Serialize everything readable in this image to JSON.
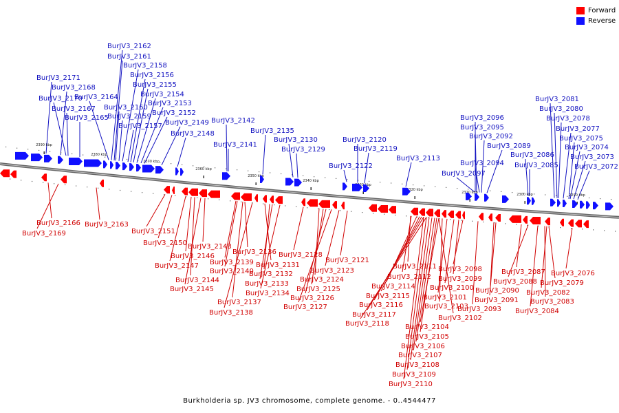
{
  "legend": {
    "forward_label": "Forward",
    "reverse_label": "Reverse",
    "forward_color": "#ff0000",
    "reverse_color": "#1010ff"
  },
  "caption": "Burkholderia sp. JV3 chromosome, complete genome. - 0..4544477",
  "kbp_ticks": [
    "2390 kbp",
    "2380 kbp",
    "2370 kbp",
    "2360 kbp",
    "2350 kbp",
    "2340 kbp",
    "2330 kbp",
    "2320 kbp",
    "2310 kbp",
    "2300 kbp",
    "2290 kbp"
  ],
  "reverse_genes": [
    "BurJV3_2171",
    "BurJV3_2168",
    "BurJV3_2170",
    "BurJV3_2167",
    "BurJV3_2165",
    "BurJV3_2164",
    "BurJV3_2162",
    "BurJV3_2161",
    "BurJV3_2160",
    "BurJV3_2159",
    "BurJV3_2158",
    "BurJV3_2157",
    "BurJV3_2156",
    "BurJV3_2155",
    "BurJV3_2154",
    "BurJV3_2153",
    "BurJV3_2152",
    "BurJV3_2149",
    "BurJV3_2148",
    "BurJV3_2142",
    "BurJV3_2141",
    "BurJV3_2135",
    "BurJV3_2130",
    "BurJV3_2129",
    "BurJV3_2122",
    "BurJV3_2120",
    "BurJV3_2119",
    "BurJV3_2113",
    "BurJV3_2097",
    "BurJV3_2096",
    "BurJV3_2095",
    "BurJV3_2094",
    "BurJV3_2092",
    "BurJV3_2089",
    "BurJV3_2086",
    "BurJV3_2085",
    "BurJV3_2081",
    "BurJV3_2080",
    "BurJV3_2078",
    "BurJV3_2077",
    "BurJV3_2075",
    "BurJV3_2074",
    "BurJV3_2073",
    "BurJV3_2072"
  ],
  "forward_genes": [
    "BurJV3_2166",
    "BurJV3_2169",
    "BurJV3_2163",
    "BurJV3_2151",
    "BurJV3_2150",
    "BurJV3_2143",
    "BurJV3_2146",
    "BurJV3_2147",
    "BurJV3_2144",
    "BurJV3_2145",
    "BurJV3_2139",
    "BurJV3_2140",
    "BurJV3_2136",
    "BurJV3_2131",
    "BurJV3_2132",
    "BurJV3_2133",
    "BurJV3_2134",
    "BurJV3_2137",
    "BurJV3_2138",
    "BurJV3_2128",
    "BurJV3_2124",
    "BurJV3_2125",
    "BurJV3_2126",
    "BurJV3_2127",
    "BurJV3_2123",
    "BurJV3_2121",
    "BurJV3_2111",
    "BurJV3_2112",
    "BurJV3_2114",
    "BurJV3_2115",
    "BurJV3_2116",
    "BurJV3_2117",
    "BurJV3_2118",
    "BurJV3_2098",
    "BurJV3_2099",
    "BurJV3_2100",
    "BurJV3_2101",
    "BurJV3_2103",
    "BurJV3_2102",
    "BurJV3_2104",
    "BurJV3_2105",
    "BurJV3_2106",
    "BurJV3_2107",
    "BurJV3_2108",
    "BurJV3_2109",
    "BurJV3_2110",
    "BurJV3_2087",
    "BurJV3_2088",
    "BurJV3_2090",
    "BurJV3_2091",
    "BurJV3_2093",
    "BurJV3_2076",
    "BurJV3_2079",
    "BurJV3_2082",
    "BurJV3_2083",
    "BurJV3_2084"
  ]
}
